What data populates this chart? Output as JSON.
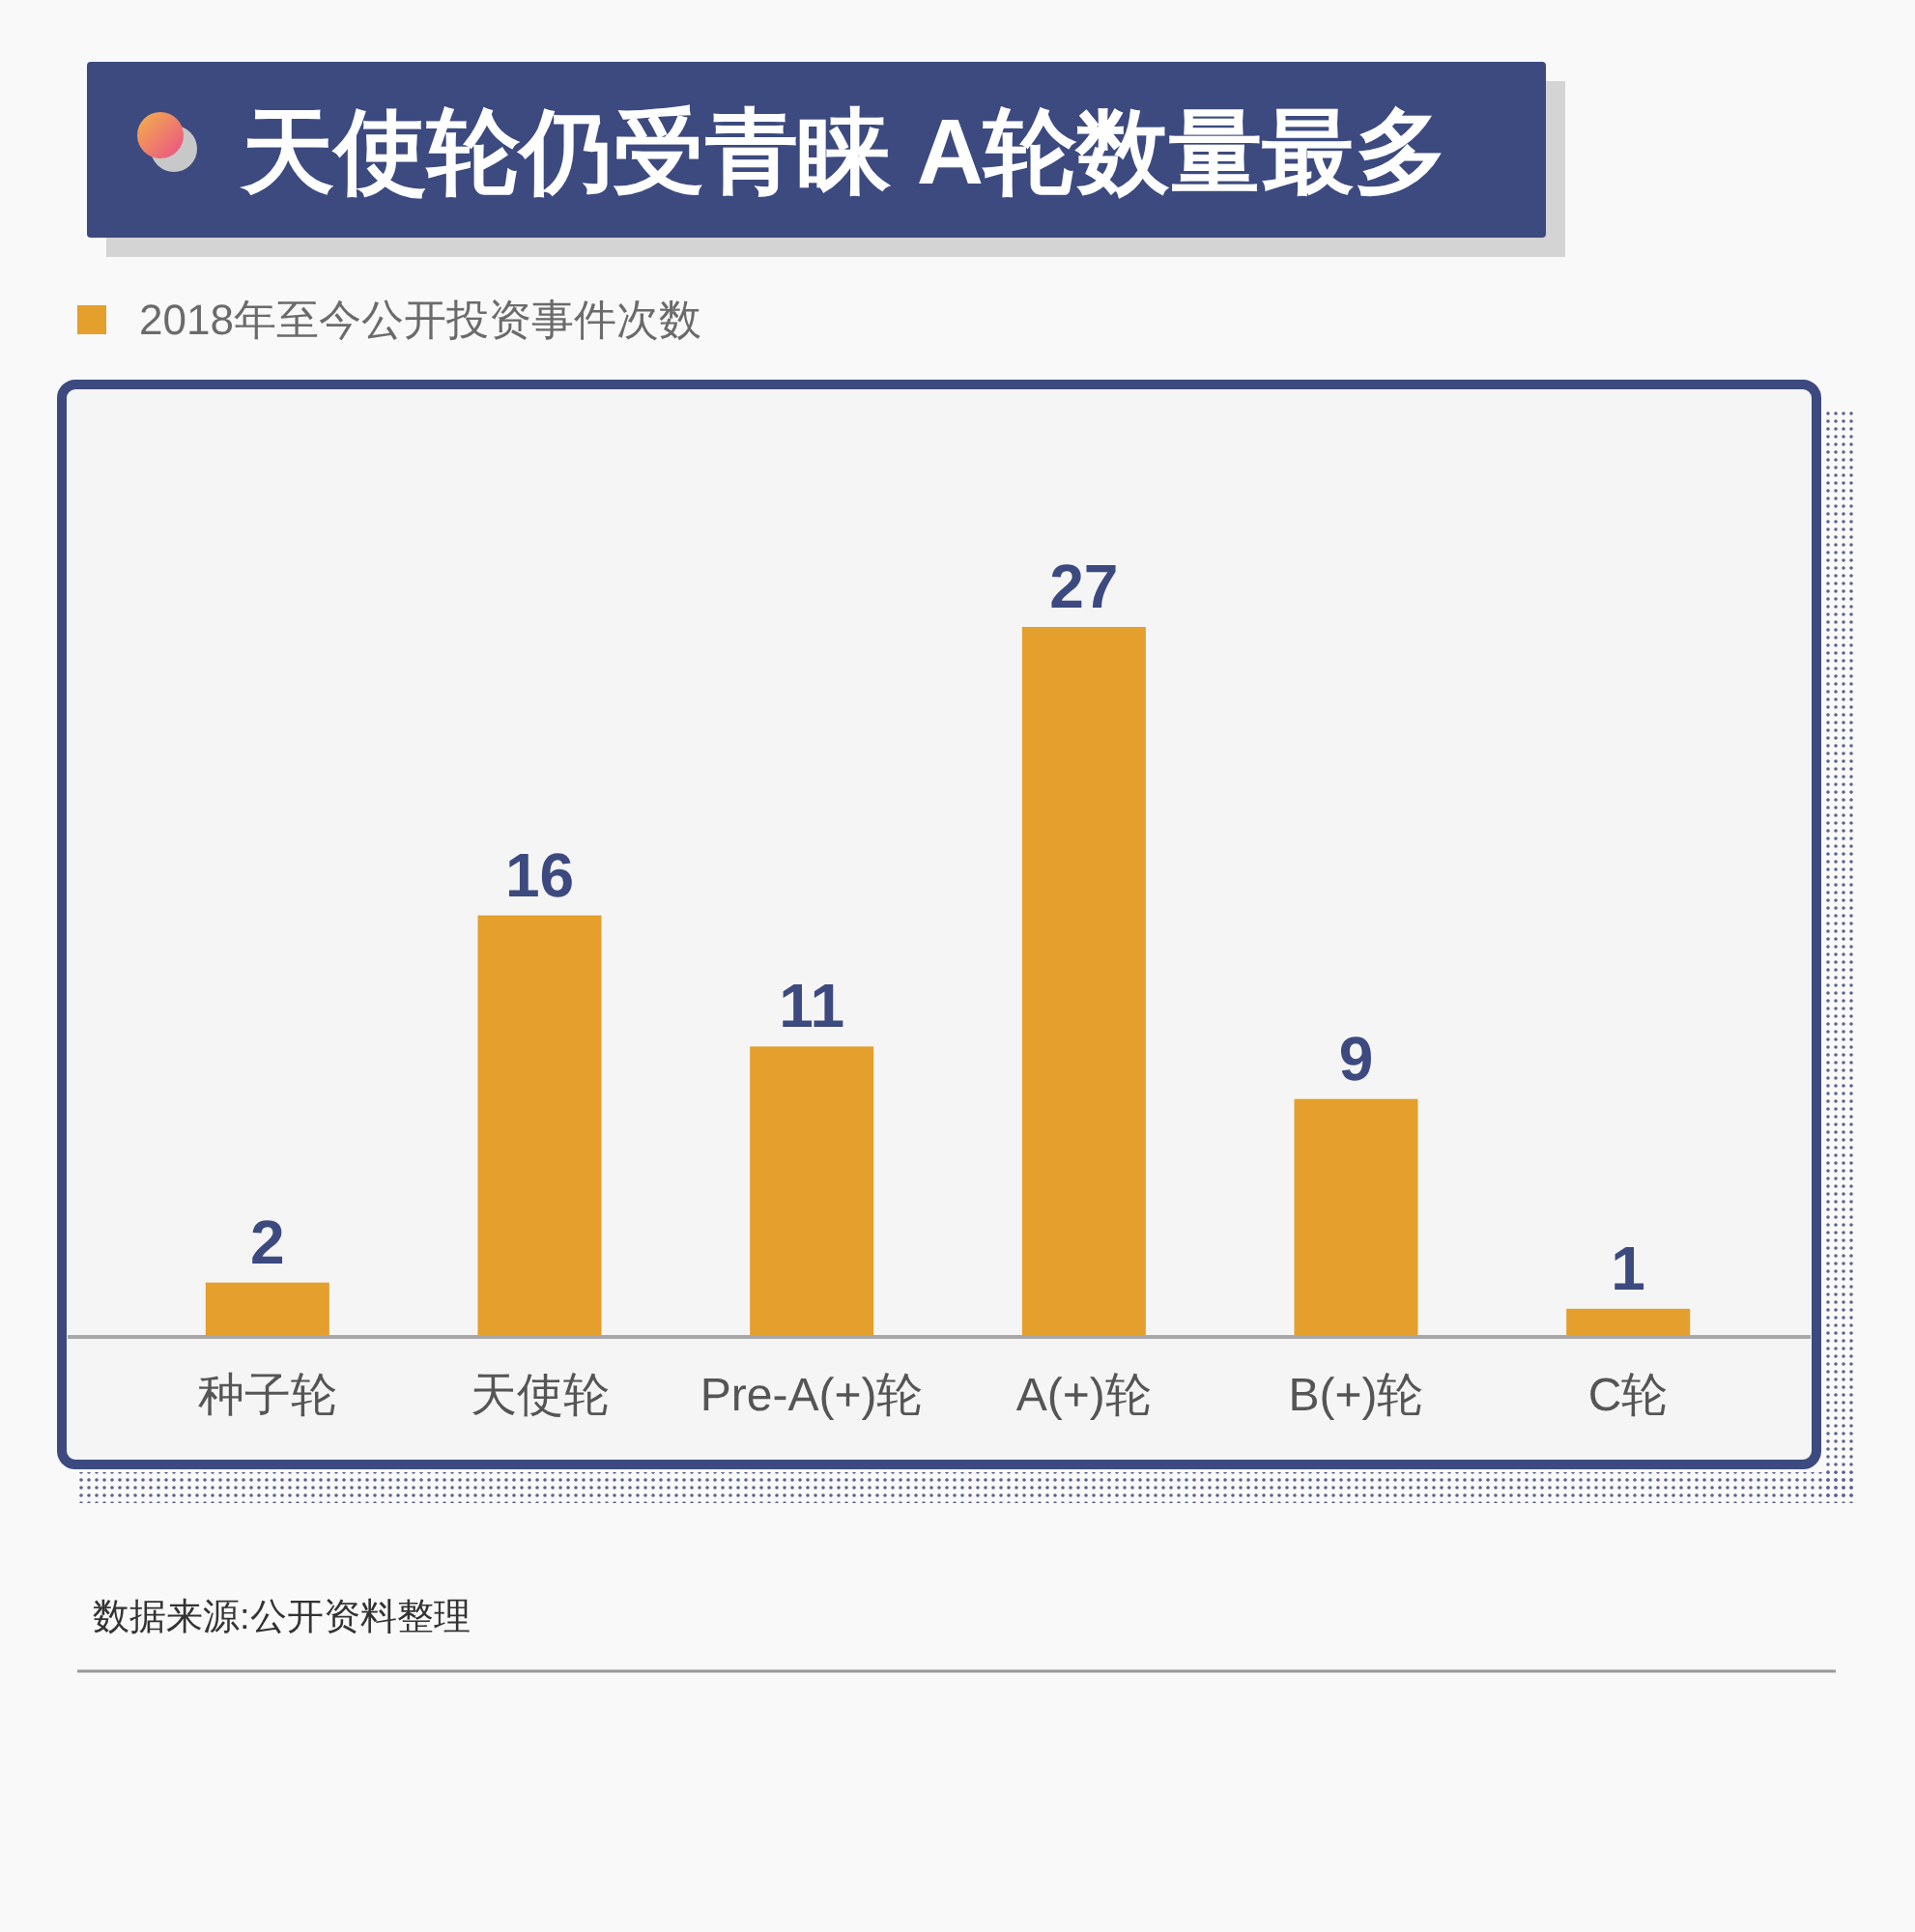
{
  "chart_data": {
    "type": "bar",
    "title": "天使轮仍受青睐 A轮数量最多",
    "categories": [
      "种子轮",
      "天使轮",
      "Pre-A(+)轮",
      "A(+)轮",
      "B(+)轮",
      "C轮"
    ],
    "series": [
      {
        "name": "2018年至今公开投资事件次数",
        "color": "#e49f2d",
        "values": [
          2,
          16,
          11,
          27,
          9,
          1
        ]
      }
    ],
    "data_labels": true,
    "legend": "top left",
    "annotations": [
      "数据来源:公开资料整理"
    ]
  }
}
